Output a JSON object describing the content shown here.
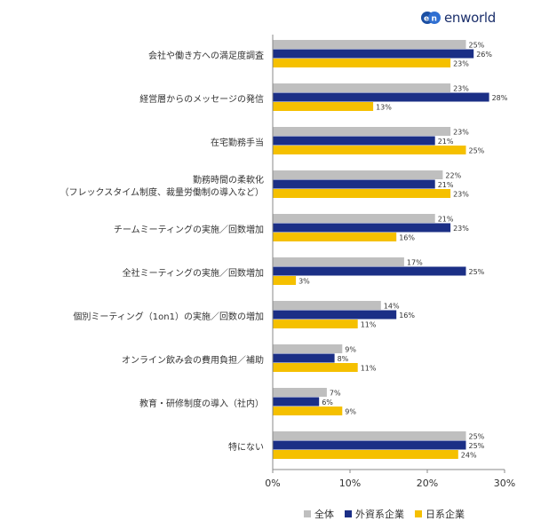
{
  "brand": {
    "name": "en world",
    "logo_text": "enworld"
  },
  "chart_data": {
    "type": "bar",
    "orientation": "horizontal",
    "categories": [
      [
        "会社や働き方への満足度調査"
      ],
      [
        "経営層からのメッセージの発信"
      ],
      [
        "在宅勤務手当"
      ],
      [
        "勤務時間の柔軟化",
        "（フレックスタイム制度、裁量労働制の導入など）"
      ],
      [
        "チームミーティングの実施／回数増加"
      ],
      [
        "全社ミーティングの実施／回数増加"
      ],
      [
        "個別ミーティング（1on1）の実施／回数の増加"
      ],
      [
        "オンライン飲み会の費用負担／補助"
      ],
      [
        "教育・研修制度の導入（社内）"
      ],
      [
        "特にない"
      ]
    ],
    "series": [
      {
        "name": "全体",
        "color": "#bfbfbf",
        "values": [
          25,
          23,
          23,
          22,
          21,
          17,
          14,
          9,
          7,
          25
        ]
      },
      {
        "name": "外資系企業",
        "color": "#1b2f86",
        "values": [
          26,
          28,
          21,
          21,
          23,
          25,
          16,
          8,
          6,
          25
        ]
      },
      {
        "name": "日系企業",
        "color": "#f5c000",
        "values": [
          23,
          13,
          25,
          23,
          16,
          3,
          11,
          11,
          9,
          24
        ]
      }
    ],
    "x_ticks": [
      "0%",
      "10%",
      "20%",
      "30%"
    ],
    "xlim": [
      0,
      30
    ],
    "value_suffix": "%",
    "legend_position": "bottom-right",
    "grid": false
  }
}
